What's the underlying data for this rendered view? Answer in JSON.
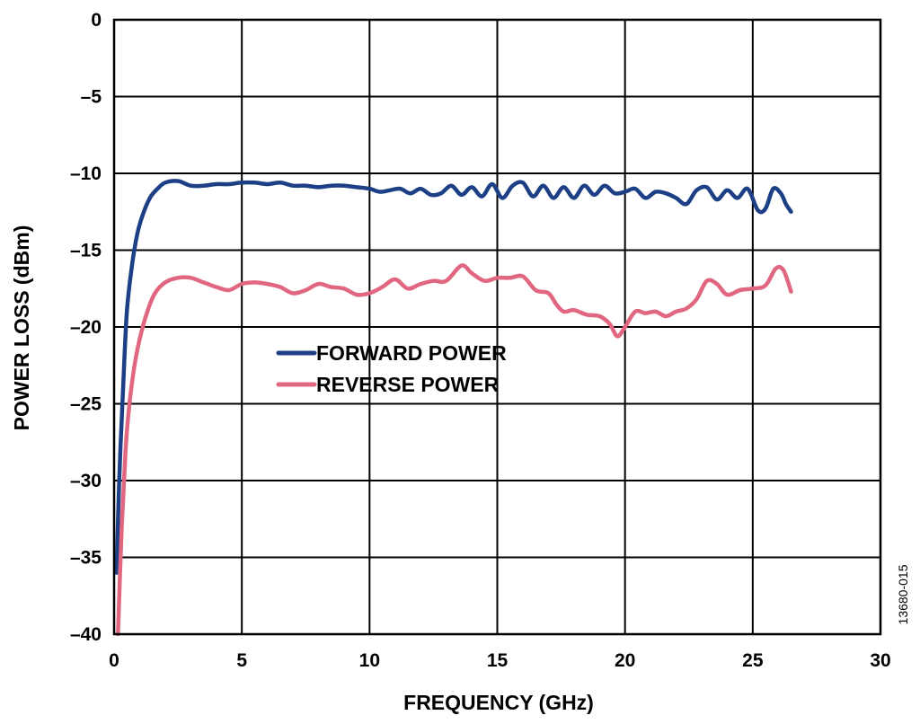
{
  "figure_id": "13680-015",
  "chart_data": {
    "type": "line",
    "title": "",
    "xlabel": "FREQUENCY (GHz)",
    "ylabel": "POWER LOSS (dBm)",
    "xlim": [
      0,
      30
    ],
    "ylim": [
      -40,
      0
    ],
    "xticks": [
      0,
      5,
      10,
      15,
      20,
      25,
      30
    ],
    "yticks": [
      0,
      -5,
      -10,
      -15,
      -20,
      -25,
      -30,
      -35,
      -40
    ],
    "xtick_labels": [
      "0",
      "5",
      "10",
      "15",
      "20",
      "25",
      "30"
    ],
    "ytick_labels": [
      "0",
      "–5",
      "–10",
      "–15",
      "–20",
      "–25",
      "–30",
      "–35",
      "–40"
    ],
    "grid": true,
    "legend_position": "center-left",
    "series": [
      {
        "name": "FORWARD POWER",
        "color": "#1d3f86",
        "x": [
          0.1,
          0.2,
          0.35,
          0.5,
          0.7,
          0.9,
          1.1,
          1.4,
          1.7,
          2.0,
          2.5,
          3.0,
          3.5,
          4.0,
          4.5,
          5.0,
          5.5,
          6.0,
          6.5,
          7.0,
          7.5,
          8.0,
          8.5,
          9.0,
          9.5,
          10.0,
          10.4,
          10.8,
          11.2,
          11.6,
          12.0,
          12.4,
          12.8,
          13.2,
          13.6,
          14.0,
          14.4,
          14.8,
          15.2,
          15.6,
          16.0,
          16.4,
          16.8,
          17.2,
          17.6,
          18.0,
          18.4,
          18.8,
          19.2,
          19.6,
          20.0,
          20.4,
          20.8,
          21.2,
          21.6,
          22.0,
          22.4,
          22.8,
          23.2,
          23.6,
          24.0,
          24.4,
          24.8,
          25.2,
          25.5,
          25.8,
          26.1,
          26.3,
          26.5
        ],
        "y": [
          -36.0,
          -30.0,
          -24.0,
          -19.0,
          -16.0,
          -14.0,
          -12.8,
          -11.6,
          -11.0,
          -10.6,
          -10.5,
          -10.8,
          -10.8,
          -10.7,
          -10.7,
          -10.6,
          -10.6,
          -10.7,
          -10.6,
          -10.8,
          -10.8,
          -10.9,
          -10.8,
          -10.8,
          -10.9,
          -11.0,
          -11.2,
          -11.1,
          -11.0,
          -11.3,
          -11.0,
          -11.4,
          -11.3,
          -10.8,
          -11.4,
          -10.9,
          -11.5,
          -10.7,
          -11.6,
          -10.8,
          -10.6,
          -11.5,
          -10.8,
          -11.6,
          -10.9,
          -11.6,
          -10.8,
          -11.4,
          -10.8,
          -11.3,
          -11.2,
          -11.0,
          -11.6,
          -11.2,
          -11.3,
          -11.6,
          -12.0,
          -11.1,
          -10.9,
          -11.7,
          -11.1,
          -11.6,
          -11.0,
          -12.4,
          -12.3,
          -11.0,
          -11.3,
          -12.0,
          -12.5
        ]
      },
      {
        "name": "REVERSE POWER",
        "color": "#e0677f",
        "x": [
          0.15,
          0.3,
          0.45,
          0.6,
          0.8,
          1.0,
          1.3,
          1.6,
          2.0,
          2.5,
          3.0,
          3.5,
          4.0,
          4.5,
          5.0,
          5.5,
          6.0,
          6.5,
          7.0,
          7.5,
          8.0,
          8.5,
          9.0,
          9.5,
          10.0,
          10.5,
          11.0,
          11.5,
          12.0,
          12.5,
          13.0,
          13.6,
          14.0,
          14.5,
          15.0,
          15.5,
          16.0,
          16.5,
          17.0,
          17.3,
          17.6,
          18.0,
          18.5,
          19.0,
          19.4,
          19.7,
          20.0,
          20.4,
          20.8,
          21.2,
          21.6,
          22.0,
          22.4,
          22.8,
          23.2,
          23.6,
          24.0,
          24.5,
          25.0,
          25.5,
          25.9,
          26.2,
          26.5
        ],
        "y": [
          -40.0,
          -33.0,
          -28.0,
          -25.0,
          -22.5,
          -20.8,
          -19.0,
          -17.8,
          -17.1,
          -16.8,
          -16.8,
          -17.1,
          -17.4,
          -17.6,
          -17.2,
          -17.1,
          -17.2,
          -17.4,
          -17.8,
          -17.6,
          -17.2,
          -17.4,
          -17.5,
          -17.9,
          -17.8,
          -17.4,
          -16.9,
          -17.5,
          -17.2,
          -17.0,
          -17.0,
          -16.0,
          -16.5,
          -17.0,
          -16.8,
          -16.8,
          -16.7,
          -17.6,
          -17.8,
          -18.5,
          -19.0,
          -18.9,
          -19.2,
          -19.3,
          -19.8,
          -20.6,
          -20.0,
          -19.0,
          -19.1,
          -19.0,
          -19.3,
          -19.0,
          -18.8,
          -18.2,
          -17.0,
          -17.2,
          -17.9,
          -17.6,
          -17.5,
          -17.3,
          -16.2,
          -16.3,
          -17.7
        ]
      }
    ]
  }
}
